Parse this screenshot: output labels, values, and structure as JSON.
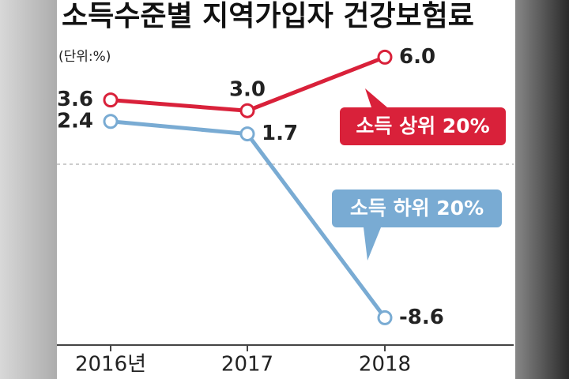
{
  "chart_data": {
    "type": "line",
    "title": "소득수준별 지역가입자 건강보험료",
    "subtitle": "(단위:%)",
    "categories": [
      "2016년",
      "2017",
      "2018"
    ],
    "series": [
      {
        "name": "소득 상위 20%",
        "color": "#d9213a",
        "values": [
          3.6,
          3.0,
          6.0
        ],
        "value_labels": [
          "3.6",
          "3.0",
          "6.0"
        ]
      },
      {
        "name": "소득 하위 20%",
        "color": "#79abd3",
        "values": [
          2.4,
          1.7,
          -8.6
        ],
        "value_labels": [
          "2.4",
          "1.7",
          "-8.6"
        ]
      }
    ],
    "ylim": [
      -10,
      9
    ],
    "zero_line": true
  }
}
